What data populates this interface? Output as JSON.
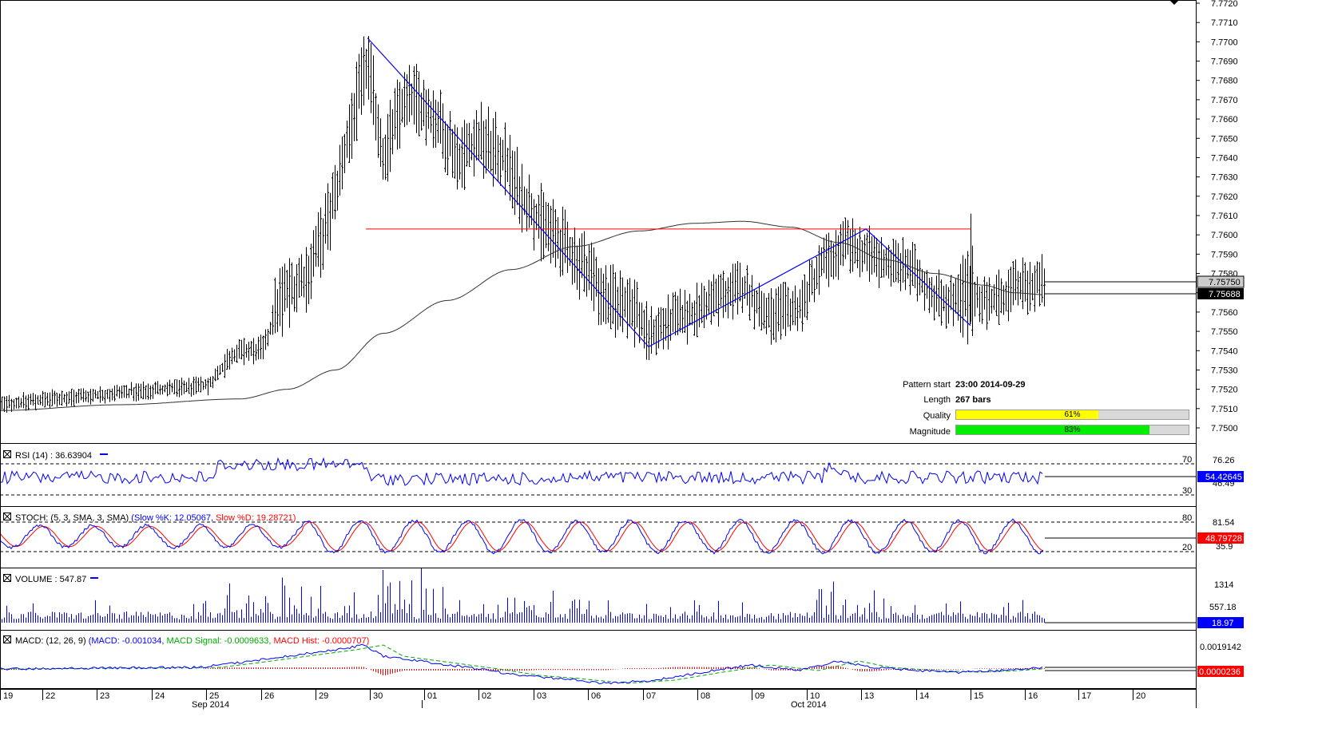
{
  "chart_data": {
    "type": "ohlc",
    "instrument_price_axis": {
      "ticks": [
        "7.7720",
        "7.7710",
        "7.7700",
        "7.7690",
        "7.7680",
        "7.7670",
        "7.7660",
        "7.7650",
        "7.7640",
        "7.7630",
        "7.7620",
        "7.7610",
        "7.7600",
        "7.7590",
        "7.7580",
        "7.7570",
        "7.7560",
        "7.7550",
        "7.7540",
        "7.7530",
        "7.7520",
        "7.7510",
        "7.7500"
      ],
      "ylim": [
        7.7494,
        7.772
      ],
      "last_price": "7.75750",
      "ma_value": "7.75688"
    },
    "x_axis": {
      "day_ticks": [
        "19",
        "22",
        "23",
        "24",
        "25",
        "26",
        "29",
        "30",
        "01",
        "02",
        "03",
        "06",
        "07",
        "08",
        "09",
        "10",
        "13",
        "14",
        "15",
        "16",
        "17",
        "20"
      ],
      "month_labels": [
        "Sep 2014",
        "Oct 2014"
      ]
    },
    "pattern_info": {
      "start_label": "Pattern start",
      "start_value": "23:00 2014-09-29",
      "length_label": "Length",
      "length_value": "267 bars",
      "quality_label": "Quality",
      "quality_value": "61%",
      "quality_fraction": 0.61,
      "magnitude_label": "Magnitude",
      "magnitude_value": "83%",
      "magnitude_fraction": 0.83
    },
    "pattern_lines": {
      "resistance_level": 7.7603,
      "zigzag": [
        [
          460,
          7.7702
        ],
        [
          812,
          7.7542
        ],
        [
          1084,
          7.7603
        ],
        [
          1215,
          7.7553
        ]
      ]
    },
    "ohlc_anchors": [
      [
        0,
        7.7512
      ],
      [
        60,
        7.7515
      ],
      [
        120,
        7.7517
      ],
      [
        200,
        7.752
      ],
      [
        260,
        7.7522
      ],
      [
        290,
        7.7538
      ],
      [
        330,
        7.7541
      ],
      [
        350,
        7.7566
      ],
      [
        380,
        7.7576
      ],
      [
        400,
        7.7595
      ],
      [
        420,
        7.762
      ],
      [
        440,
        7.766
      ],
      [
        460,
        7.769
      ],
      [
        480,
        7.764
      ],
      [
        500,
        7.7665
      ],
      [
        520,
        7.767
      ],
      [
        545,
        7.766
      ],
      [
        575,
        7.764
      ],
      [
        600,
        7.765
      ],
      [
        630,
        7.764
      ],
      [
        660,
        7.7615
      ],
      [
        690,
        7.76
      ],
      [
        715,
        7.759
      ],
      [
        740,
        7.758
      ],
      [
        760,
        7.7565
      ],
      [
        790,
        7.7565
      ],
      [
        812,
        7.7548
      ],
      [
        840,
        7.7555
      ],
      [
        870,
        7.756
      ],
      [
        900,
        7.7568
      ],
      [
        930,
        7.7573
      ],
      [
        960,
        7.7558
      ],
      [
        1000,
        7.7562
      ],
      [
        1030,
        7.7585
      ],
      [
        1060,
        7.7595
      ],
      [
        1084,
        7.759
      ],
      [
        1110,
        7.7585
      ],
      [
        1140,
        7.7583
      ],
      [
        1170,
        7.7568
      ],
      [
        1200,
        7.7565
      ],
      [
        1215,
        7.757
      ],
      [
        1240,
        7.7565
      ],
      [
        1270,
        7.7572
      ],
      [
        1300,
        7.7575
      ],
      [
        1307,
        7.7575
      ]
    ],
    "panels": [
      {
        "name": "RSI",
        "legend": "RSI (14) : 36.63904",
        "levels": [
          "70",
          "30"
        ],
        "axis_label": "76.26",
        "axis_label_2": "46.49",
        "current_value": "54.42645"
      },
      {
        "name": "STOCH",
        "legend_parts": [
          {
            "text": "STOCH: (5, 3, SMA, 3, SMA) ",
            "color": "#000000"
          },
          {
            "text": "(Slow %K: 12.05067, ",
            "color": "#0000ff"
          },
          {
            "text": "Slow %D: 19.28721)",
            "color": "#ff0000"
          }
        ],
        "levels": [
          "80",
          "20"
        ],
        "axis_label": "81.54",
        "axis_label_2": "35.9",
        "current_value": "48.79728"
      },
      {
        "name": "VOLUME",
        "legend": "VOLUME : 547.87",
        "axis_label": "1314",
        "axis_label_2": "557.18",
        "current_value": "18.97"
      },
      {
        "name": "MACD",
        "legend_parts": [
          {
            "text": "MACD: (12, 26, 9) ",
            "color": "#000000"
          },
          {
            "text": "(MACD: -0.001034, ",
            "color": "#0000ff"
          },
          {
            "text": "MACD Signal: -0.0009633, ",
            "color": "#00aa00"
          },
          {
            "text": "MACD Hist: -0.0000707)",
            "color": "#ff0000"
          }
        ],
        "axis_label": "0.0019142",
        "current_value": "0.0000236"
      }
    ],
    "colors": {
      "bars": "#000000",
      "pattern_line": "#0000ff",
      "resistance_line": "#ff0000",
      "ma_line": "#333333",
      "rsi": "#0000ff",
      "stoch_k": "#0000ff",
      "stoch_d": "#ff0000",
      "volume": "#0000ff",
      "macd": "#0000ff",
      "macd_signal": "#00aa00",
      "macd_hist": "#ff0000",
      "quality_bar": "#ffff00",
      "magnitude_bar": "#00ee00",
      "value_box_red": "#ff0000",
      "value_box_blue": "#0000ff",
      "value_box_black": "#000000",
      "value_box_gray": "#cccccc"
    }
  }
}
